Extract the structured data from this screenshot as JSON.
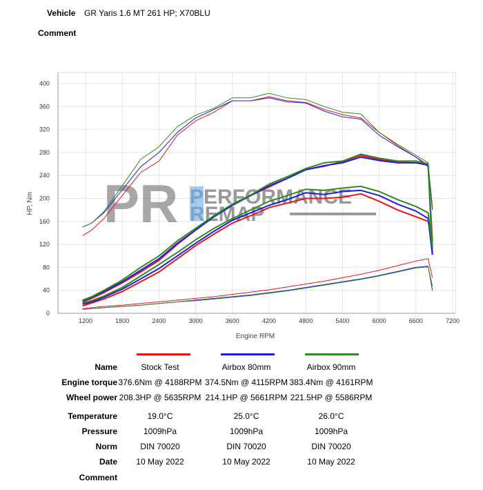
{
  "header": {
    "vehicle_label": "Vehicle",
    "vehicle_value": "GR Yaris 1.6 MT 261 HP; X70BLU",
    "comment_label": "Comment"
  },
  "watermark": {
    "mark": "PR",
    "line1": "PERFORMANCE",
    "line2": "REMAP"
  },
  "chart_data": {
    "type": "line",
    "xlabel": "Engine RPM",
    "ylabel": "HP, Nm",
    "xlim": [
      800,
      7400
    ],
    "ylim": [
      0,
      410
    ],
    "xticks": [
      1200,
      1800,
      2400,
      3000,
      3600,
      4200,
      4800,
      5400,
      6000,
      6600,
      7200
    ],
    "yticks": [
      0,
      40,
      80,
      120,
      160,
      200,
      240,
      280,
      320,
      360,
      400
    ],
    "grid": true,
    "x": [
      1150,
      1300,
      1500,
      1800,
      2100,
      2400,
      2700,
      3000,
      3300,
      3600,
      3900,
      4200,
      4500,
      4800,
      5100,
      5400,
      5700,
      6000,
      6300,
      6600,
      6800,
      6870
    ],
    "runs": [
      {
        "name": "Stock Test",
        "color": "#e8141b",
        "engine_torque": [
          135,
          145,
          165,
          205,
          245,
          265,
          310,
          335,
          350,
          370,
          370,
          377,
          370,
          367,
          355,
          346,
          340,
          315,
          292,
          272,
          258,
          185
        ],
        "engine_power": [
          20,
          26,
          36,
          53,
          72,
          92,
          120,
          145,
          170,
          190,
          205,
          220,
          235,
          250,
          256,
          264,
          275,
          268,
          263,
          262,
          258,
          125
        ],
        "wheel_power": [
          13,
          18,
          25,
          38,
          55,
          72,
          95,
          118,
          138,
          157,
          170,
          184,
          192,
          200,
          200,
          202,
          208,
          195,
          180,
          168,
          160,
          125
        ],
        "loss_power": [
          8,
          10,
          12,
          14,
          17,
          20,
          23,
          26,
          29,
          33,
          37,
          41,
          46,
          51,
          56,
          62,
          68,
          75,
          83,
          91,
          95,
          62
        ]
      },
      {
        "name": "Airbox 80mm",
        "color": "#1c1ce6",
        "engine_torque": [
          150,
          157,
          175,
          215,
          255,
          280,
          315,
          340,
          355,
          370,
          370,
          375,
          368,
          366,
          352,
          342,
          338,
          310,
          290,
          272,
          255,
          180
        ],
        "engine_power": [
          22,
          28,
          38,
          55,
          75,
          95,
          122,
          145,
          168,
          188,
          205,
          222,
          235,
          250,
          257,
          262,
          272,
          266,
          262,
          262,
          258,
          102
        ],
        "wheel_power": [
          16,
          20,
          28,
          42,
          60,
          78,
          100,
          122,
          143,
          162,
          175,
          188,
          198,
          210,
          207,
          212,
          214,
          205,
          190,
          178,
          165,
          102
        ],
        "loss_power": [
          7,
          8,
          10,
          12,
          14,
          17,
          20,
          23,
          26,
          29,
          32,
          36,
          40,
          45,
          50,
          55,
          60,
          66,
          73,
          80,
          82,
          40
        ]
      },
      {
        "name": "Airbox 90mm",
        "color": "#2f8a1f",
        "engine_torque": [
          150,
          157,
          177,
          222,
          268,
          290,
          325,
          345,
          357,
          375,
          375,
          383,
          375,
          372,
          360,
          350,
          347,
          315,
          294,
          275,
          262,
          185
        ],
        "engine_power": [
          23,
          29,
          40,
          58,
          80,
          100,
          126,
          148,
          170,
          190,
          206,
          225,
          238,
          252,
          262,
          265,
          277,
          270,
          265,
          265,
          260,
          115
        ],
        "wheel_power": [
          18,
          22,
          30,
          45,
          65,
          85,
          106,
          128,
          148,
          165,
          180,
          195,
          205,
          216,
          214,
          218,
          221,
          212,
          198,
          186,
          175,
          115
        ],
        "loss_power": [
          7,
          8,
          10,
          12,
          14,
          17,
          20,
          22,
          25,
          28,
          31,
          35,
          39,
          44,
          49,
          54,
          59,
          65,
          72,
          79,
          81,
          47
        ]
      }
    ]
  },
  "table": {
    "row_labels": [
      "Name",
      "Engine torque",
      "Wheel power",
      "Temperature",
      "Pressure",
      "Norm",
      "Date",
      "Comment"
    ],
    "columns": [
      {
        "name": "Stock Test",
        "color": "#e8141b",
        "torque": "376.6Nm @ 4188RPM",
        "power": "208.3HP @ 5635RPM",
        "temp": "19.0°C",
        "pressure": "1009hPa",
        "norm": "DIN 70020",
        "date": "10 May 2022"
      },
      {
        "name": "Airbox 80mm",
        "color": "#1c1ce6",
        "torque": "374.5Nm @ 4115RPM",
        "power": "214.1HP @ 5661RPM",
        "temp": "25.0°C",
        "pressure": "1009hPa",
        "norm": "DIN 70020",
        "date": "10 May 2022"
      },
      {
        "name": "Airbox 90mm",
        "color": "#2f8a1f",
        "torque": "383.4Nm @ 4161RPM",
        "power": "221.5HP @ 5586RPM",
        "temp": "26.0°C",
        "pressure": "1009hPa",
        "norm": "DIN 70020",
        "date": "10 May 2022"
      }
    ]
  }
}
